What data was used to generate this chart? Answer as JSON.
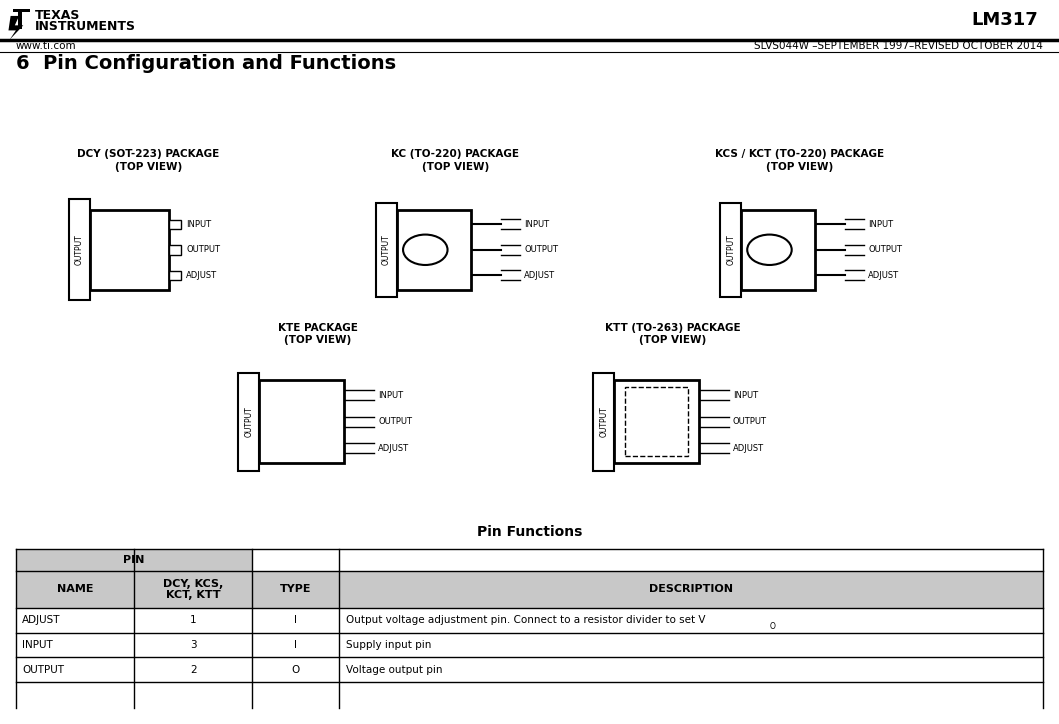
{
  "title_chip": "LM317",
  "subtitle": "SLVS044W –SEPTEMBER 1997–REVISED OCTOBER 2014",
  "website": "www.ti.com",
  "section_title": "6  Pin Configuration and Functions",
  "bg_color": "#ffffff",
  "table": {
    "title": "Pin Functions",
    "header_bg": "#c8c8c8",
    "cols": [
      "NAME",
      "DCY, KCS,\nKCT, KTT",
      "TYPE",
      "DESCRIPTION"
    ],
    "rows": [
      [
        "ADJUST",
        "1",
        "I",
        "Output voltage adjustment pin. Connect to a resistor divider to set V_O"
      ],
      [
        "INPUT",
        "3",
        "I",
        "Supply input pin"
      ],
      [
        "OUTPUT",
        "2",
        "O",
        "Voltage output pin"
      ]
    ]
  }
}
